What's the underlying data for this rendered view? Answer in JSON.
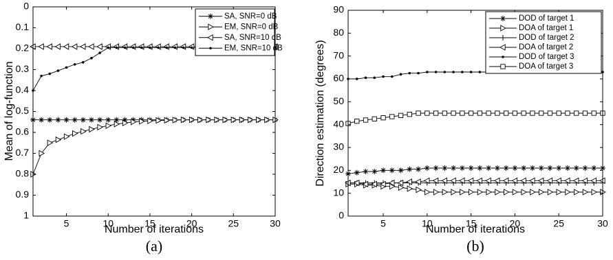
{
  "chart_data": [
    {
      "type": "line",
      "panel_label": "(a)",
      "xlabel": "Number of iterations",
      "ylabel": "Mean of log-function",
      "xlim": [
        1,
        30
      ],
      "ylim": [
        0,
        1
      ],
      "y_reversed": true,
      "xticks": [
        5,
        10,
        15,
        20,
        25,
        30
      ],
      "xtick_labels": [
        "5",
        "10",
        "15",
        "20",
        "25",
        "30"
      ],
      "yticks": [
        0,
        0.1,
        0.2,
        0.3,
        0.4,
        0.5,
        0.6,
        0.7,
        0.8,
        0.9,
        1
      ],
      "ytick_labels": [
        "0",
        "0.1",
        "0.2",
        "0.3",
        "0.4",
        "0.5",
        "0.6",
        "0.7",
        "0.8",
        "0.9",
        "1"
      ],
      "legend_position": "top-right",
      "x": [
        1,
        2,
        3,
        4,
        5,
        6,
        7,
        8,
        9,
        10,
        11,
        12,
        13,
        14,
        15,
        16,
        17,
        18,
        19,
        20,
        21,
        22,
        23,
        24,
        25,
        26,
        27,
        28,
        29,
        30
      ],
      "series": [
        {
          "name": "SA, SNR=0 dB",
          "marker": "star",
          "values": [
            0.54,
            0.54,
            0.54,
            0.54,
            0.54,
            0.54,
            0.54,
            0.54,
            0.54,
            0.54,
            0.54,
            0.54,
            0.54,
            0.54,
            0.54,
            0.54,
            0.54,
            0.54,
            0.54,
            0.54,
            0.54,
            0.54,
            0.54,
            0.54,
            0.54,
            0.54,
            0.54,
            0.54,
            0.54,
            0.54
          ]
        },
        {
          "name": "EM, SNR=0 dB",
          "marker": "triangle-right",
          "values": [
            0.8,
            0.7,
            0.65,
            0.635,
            0.62,
            0.605,
            0.595,
            0.585,
            0.575,
            0.568,
            0.56,
            0.555,
            0.55,
            0.547,
            0.545,
            0.543,
            0.542,
            0.541,
            0.54,
            0.54,
            0.54,
            0.54,
            0.54,
            0.54,
            0.54,
            0.54,
            0.54,
            0.54,
            0.54,
            0.54
          ]
        },
        {
          "name": "SA, SNR=10 dB",
          "marker": "triangle-left",
          "values": [
            0.19,
            0.19,
            0.19,
            0.19,
            0.19,
            0.19,
            0.19,
            0.19,
            0.19,
            0.19,
            0.19,
            0.19,
            0.19,
            0.19,
            0.19,
            0.19,
            0.19,
            0.19,
            0.19,
            0.19,
            0.19,
            0.19,
            0.19,
            0.19,
            0.19,
            0.19,
            0.19,
            0.19,
            0.19,
            0.19
          ]
        },
        {
          "name": "EM, SNR=10 dB",
          "marker": "dot",
          "values": [
            0.4,
            0.33,
            0.32,
            0.305,
            0.29,
            0.275,
            0.265,
            0.245,
            0.22,
            0.195,
            0.195,
            0.195,
            0.195,
            0.195,
            0.195,
            0.195,
            0.195,
            0.195,
            0.195,
            0.195,
            0.195,
            0.195,
            0.195,
            0.195,
            0.195,
            0.195,
            0.195,
            0.195,
            0.195,
            0.195
          ]
        }
      ]
    },
    {
      "type": "line",
      "panel_label": "(b)",
      "xlabel": "Number of iterations",
      "ylabel": "Direction estimation (degrees)",
      "xlim": [
        1,
        30
      ],
      "ylim": [
        0,
        90
      ],
      "y_reversed": false,
      "xticks": [
        5,
        10,
        15,
        20,
        25,
        30
      ],
      "xtick_labels": [
        "5",
        "10",
        "15",
        "20",
        "25",
        "30"
      ],
      "yticks": [
        0,
        10,
        20,
        30,
        40,
        50,
        60,
        70,
        80,
        90
      ],
      "ytick_labels": [
        "0",
        "10",
        "20",
        "30",
        "40",
        "50",
        "60",
        "70",
        "80",
        "90"
      ],
      "legend_position": "top-right",
      "x": [
        1,
        2,
        3,
        4,
        5,
        6,
        7,
        8,
        9,
        10,
        11,
        12,
        13,
        14,
        15,
        16,
        17,
        18,
        19,
        20,
        21,
        22,
        23,
        24,
        25,
        26,
        27,
        28,
        29,
        30
      ],
      "series": [
        {
          "name": "DOD of target 1",
          "marker": "star",
          "values": [
            18.5,
            19,
            19.5,
            19.5,
            20,
            20,
            20,
            20.5,
            20.5,
            21,
            21,
            21,
            21,
            21,
            21,
            21,
            21,
            21,
            21,
            21,
            21,
            21,
            21,
            21,
            21,
            21,
            21,
            21,
            21,
            21
          ]
        },
        {
          "name": "DOA of target 1",
          "marker": "triangle-right",
          "values": [
            14,
            14,
            13.5,
            13.5,
            13,
            13,
            12.5,
            12,
            11.5,
            10.5,
            10.5,
            10.5,
            10.5,
            10.5,
            10.5,
            10.5,
            10.5,
            10.5,
            10.5,
            10.5,
            10.5,
            10.5,
            10.5,
            10.5,
            10.5,
            10.5,
            10.5,
            10.5,
            10.5,
            10.5
          ]
        },
        {
          "name": "DOD of target 2",
          "marker": "plus",
          "values": [
            14.5,
            14.5,
            14.5,
            14.5,
            14.5,
            14.5,
            14.5,
            14.5,
            14.5,
            14.5,
            14.5,
            14.5,
            14.5,
            14.5,
            14.5,
            14.5,
            14.5,
            14.5,
            14.5,
            14.5,
            14.5,
            14.5,
            14.5,
            14.5,
            14.5,
            14.5,
            14.5,
            14.5,
            14.5,
            14.5
          ]
        },
        {
          "name": "DOA of target 2",
          "marker": "triangle-left",
          "values": [
            14.5,
            14.5,
            14,
            14,
            14,
            14.5,
            14.5,
            15,
            15,
            15.5,
            15.5,
            15.5,
            15.5,
            15.5,
            15.5,
            15.5,
            15.5,
            15.5,
            15.5,
            15.5,
            15.5,
            15.5,
            15.5,
            15.5,
            15.5,
            15.5,
            15.5,
            15.5,
            15.5,
            15.5
          ]
        },
        {
          "name": "DOD of target 3",
          "marker": "dot",
          "values": [
            60,
            60,
            60.5,
            60.5,
            61,
            61,
            62,
            62.5,
            62.5,
            63,
            63,
            63,
            63,
            63,
            63,
            63,
            63,
            63,
            63,
            63,
            63,
            63,
            63,
            63,
            63,
            63,
            63,
            63,
            63,
            63
          ]
        },
        {
          "name": "DOA of target 3",
          "marker": "square",
          "values": [
            40.5,
            41.5,
            42,
            42.5,
            43,
            43.5,
            44,
            44.5,
            45,
            45,
            45,
            45,
            45,
            45,
            45,
            45,
            45,
            45,
            45,
            45,
            45,
            45,
            45,
            45,
            45,
            45,
            45,
            45,
            45,
            45
          ]
        }
      ]
    }
  ]
}
